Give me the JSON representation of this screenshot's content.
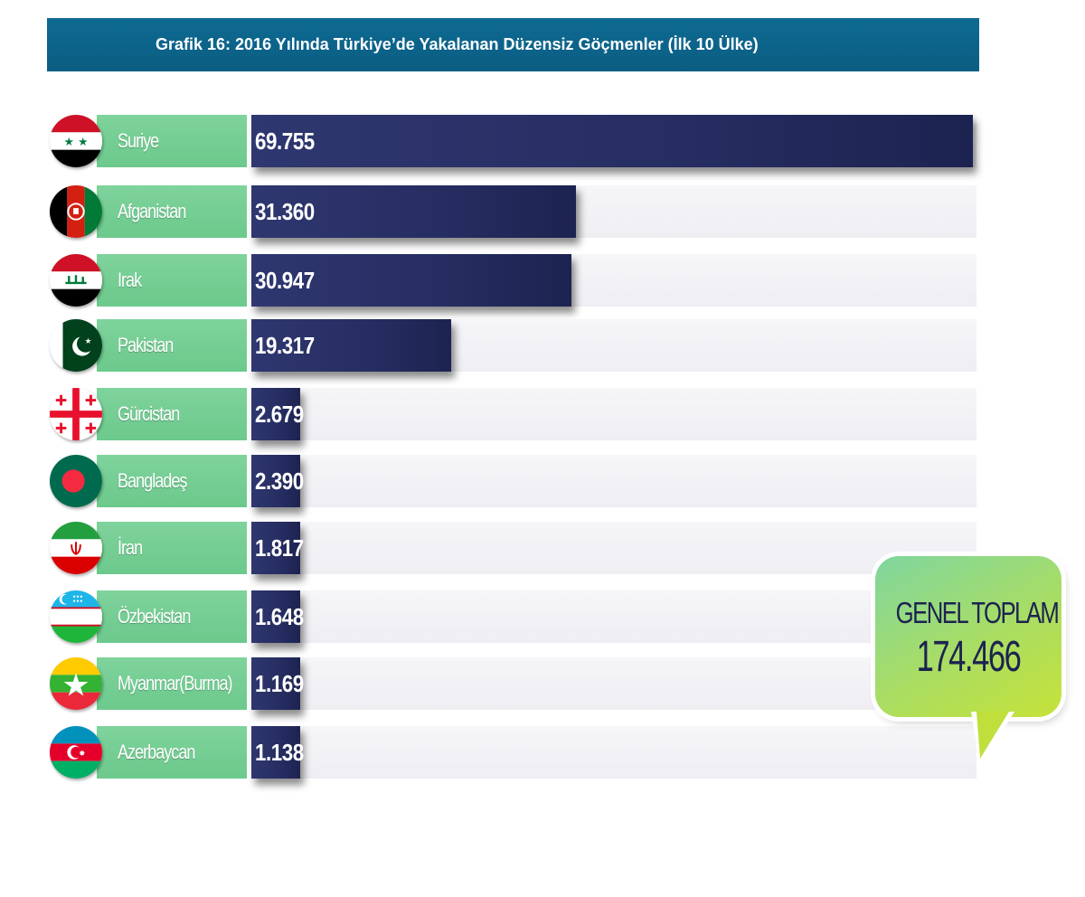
{
  "chart_data": {
    "type": "bar",
    "orientation": "horizontal",
    "title": "Grafik 16: 2016 Yılında Türkiye’de Yakalanan Düzensiz Göçmenler (İlk 10 Ülke)",
    "categories": [
      "Suriye",
      "Afganistan",
      "Irak",
      "Pakistan",
      "Gürcistan",
      "Bangladeş",
      "İran",
      "Özbekistan",
      "Myanmar(Burma)",
      "Azerbaycan"
    ],
    "values": [
      69755,
      31360,
      30947,
      19317,
      2679,
      2390,
      1817,
      1648,
      1169,
      1138
    ],
    "value_labels": [
      "69.755",
      "31.360",
      "30.947",
      "19.317",
      "2.679",
      "2.390",
      "1.817",
      "1.648",
      "1.169",
      "1.138"
    ],
    "flag_icons": [
      "syria-flag-icon",
      "afghanistan-flag-icon",
      "iraq-flag-icon",
      "pakistan-flag-icon",
      "georgia-flag-icon",
      "bangladesh-flag-icon",
      "iran-flag-icon",
      "uzbekistan-flag-icon",
      "myanmar-flag-icon",
      "azerbaijan-flag-icon"
    ],
    "xlim": [
      0,
      69755
    ],
    "grid": false,
    "colors": {
      "title_bar": "#0b5d82",
      "label_box": "#72cc90",
      "bar": "#262d61",
      "track": "#f2f2f6",
      "callout_text": "#1c2350"
    }
  },
  "total": {
    "label": "GENEL TOPLAM",
    "value": "174.466"
  }
}
